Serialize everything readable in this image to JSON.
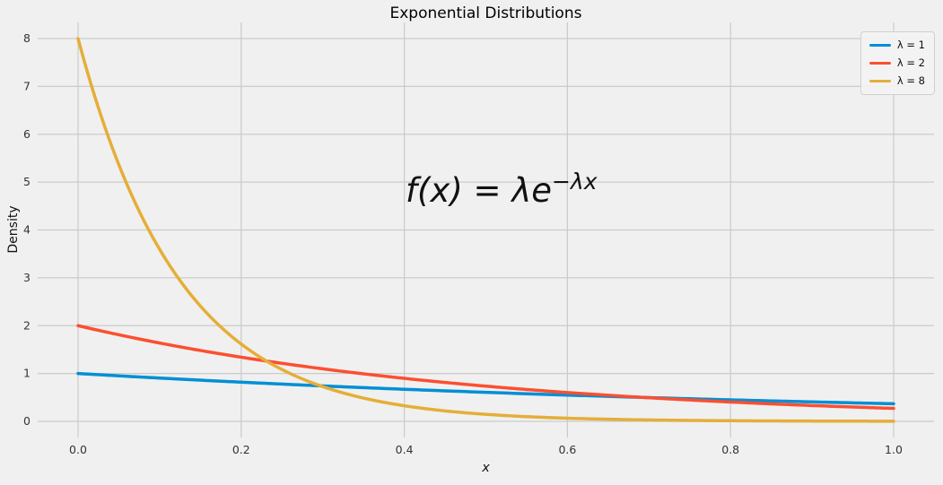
{
  "chart_data": {
    "type": "line",
    "title": "Exponential Distributions",
    "xlabel": "x",
    "ylabel": "Density",
    "annotation": {
      "base": "f(x) = λe",
      "sup": "−λx"
    },
    "xlim": [
      0,
      1
    ],
    "ylim": [
      0,
      8
    ],
    "grid": true,
    "legend_position": "upper right",
    "background_color": "#f0f0f0",
    "grid_color": "#cbcbcb",
    "x_ticks": [
      0.0,
      0.2,
      0.4,
      0.6,
      0.8,
      1.0
    ],
    "x_tick_labels": [
      "0.0",
      "0.2",
      "0.4",
      "0.6",
      "0.8",
      "1.0"
    ],
    "y_ticks": [
      0,
      1,
      2,
      3,
      4,
      5,
      6,
      7,
      8
    ],
    "y_tick_labels": [
      "0",
      "1",
      "2",
      "3",
      "4",
      "5",
      "6",
      "7",
      "8"
    ],
    "x": [
      0.0,
      0.05,
      0.1,
      0.15,
      0.2,
      0.25,
      0.3,
      0.35,
      0.4,
      0.45,
      0.5,
      0.55,
      0.6,
      0.65,
      0.7,
      0.75,
      0.8,
      0.85,
      0.9,
      0.95,
      1.0
    ],
    "series": [
      {
        "name": "λ = 1",
        "lambda": 1,
        "color": "#008fd5",
        "values": [
          1.0,
          0.951,
          0.905,
          0.861,
          0.819,
          0.779,
          0.741,
          0.705,
          0.67,
          0.638,
          0.607,
          0.577,
          0.549,
          0.522,
          0.497,
          0.472,
          0.449,
          0.427,
          0.407,
          0.387,
          0.368
        ]
      },
      {
        "name": "λ = 2",
        "lambda": 2,
        "color": "#fc4f30",
        "values": [
          2.0,
          1.81,
          1.637,
          1.482,
          1.341,
          1.213,
          1.098,
          0.993,
          0.899,
          0.813,
          0.736,
          0.666,
          0.602,
          0.545,
          0.493,
          0.446,
          0.404,
          0.366,
          0.331,
          0.299,
          0.271
        ]
      },
      {
        "name": "λ = 8",
        "lambda": 8,
        "color": "#e5ae38",
        "values": [
          8.0,
          5.363,
          3.595,
          2.41,
          1.615,
          1.083,
          0.726,
          0.487,
          0.326,
          0.219,
          0.147,
          0.098,
          0.066,
          0.044,
          0.03,
          0.02,
          0.013,
          0.009,
          0.006,
          0.004,
          0.003
        ]
      }
    ]
  }
}
